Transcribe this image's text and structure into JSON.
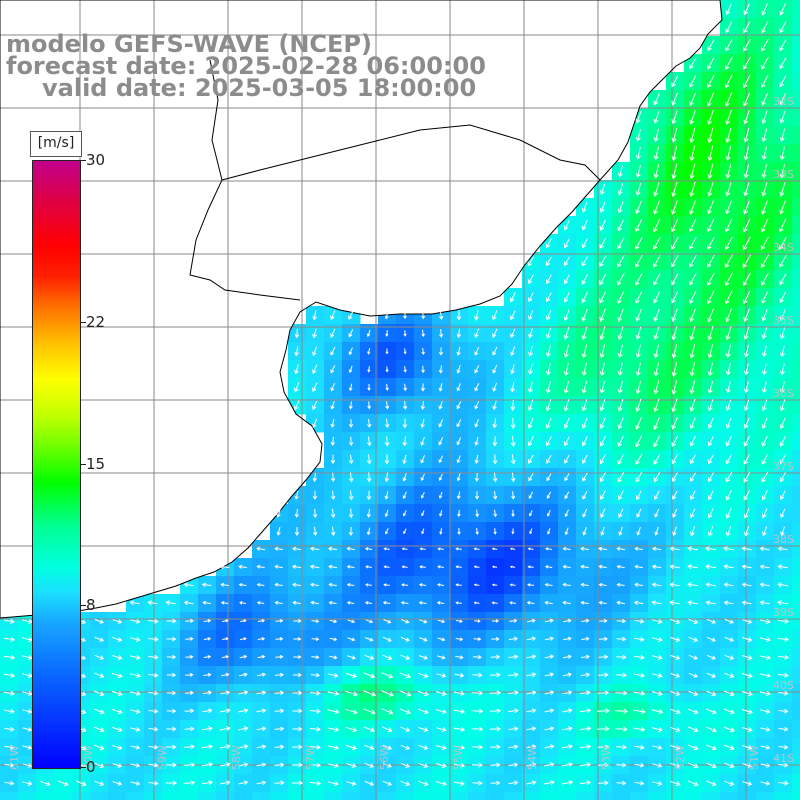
{
  "title": {
    "line1": "modelo GEFS-WAVE (NCEP)",
    "line2": "forecast date: 2025-02-28 06:00:00",
    "line3": "valid date: 2025-03-05 18:00:00"
  },
  "legend": {
    "unit": "[m/s]",
    "ticks": [
      {
        "value": 30,
        "label": "30"
      },
      {
        "value": 22,
        "label": "22"
      },
      {
        "value": 15,
        "label": "15"
      },
      {
        "value": 8,
        "label": "8"
      },
      {
        "value": 0,
        "label": "0"
      }
    ],
    "scale_max": 30
  },
  "colors": {
    "land": "#ffffff",
    "coastline": "#000000",
    "grid": "#8a8a8a",
    "arrow": "#ffffff",
    "label": "#b8c4c8"
  },
  "lat_labels": [
    "32S",
    "33S",
    "34S",
    "35S",
    "36S",
    "37S",
    "38S",
    "39S",
    "40S",
    "41S"
  ],
  "lon_labels": [
    "61W",
    "60W",
    "59W",
    "58W",
    "57W",
    "56W",
    "55W",
    "54W",
    "53W",
    "52W",
    "51W"
  ],
  "wind_field": {
    "description_units": "m/s",
    "regions": [
      {
        "name": "upper-right offshore",
        "speed": 11
      },
      {
        "name": "central shelf",
        "speed": 4
      },
      {
        "name": "southern band",
        "speed": 9
      }
    ]
  }
}
